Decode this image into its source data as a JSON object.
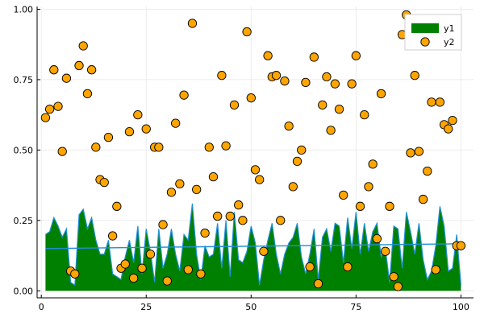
{
  "chart_data": {
    "type": "area",
    "title": "",
    "xlabel": "",
    "ylabel": "",
    "xlim": [
      -1,
      103
    ],
    "ylim": [
      -0.025,
      1.01
    ],
    "xticks": [
      0,
      25,
      50,
      75,
      100
    ],
    "xtick_labels": [
      "0",
      "25",
      "50",
      "75",
      "100"
    ],
    "yticks": [
      0.0,
      0.25,
      0.5,
      0.75,
      1.0
    ],
    "ytick_labels": [
      "0.00",
      "0.25",
      "0.50",
      "0.75",
      "1.00"
    ],
    "grid": true,
    "legend_position": "top-right",
    "colors": {
      "area_fill": "#008000",
      "area_line": "#1f8fd6",
      "marker_fill": "#ffa500",
      "marker_edge": "#000000",
      "grid": "#ececec",
      "axis": "#000000"
    },
    "series": [
      {
        "name": "y1",
        "type": "area",
        "x": [
          1,
          2,
          3,
          4,
          5,
          6,
          7,
          8,
          9,
          10,
          11,
          12,
          13,
          14,
          15,
          16,
          17,
          18,
          19,
          20,
          21,
          22,
          23,
          24,
          25,
          26,
          27,
          28,
          29,
          30,
          31,
          32,
          33,
          34,
          35,
          36,
          37,
          38,
          39,
          40,
          41,
          42,
          43,
          44,
          45,
          46,
          47,
          48,
          49,
          50,
          51,
          52,
          53,
          54,
          55,
          56,
          57,
          58,
          59,
          60,
          61,
          62,
          63,
          64,
          65,
          66,
          67,
          68,
          69,
          70,
          71,
          72,
          73,
          74,
          75,
          76,
          77,
          78,
          79,
          80,
          81,
          82,
          83,
          84,
          85,
          86,
          87,
          88,
          89,
          90,
          91,
          92,
          93,
          94,
          95,
          96,
          97,
          98,
          99,
          100
        ],
        "values": [
          0.2,
          0.21,
          0.26,
          0.23,
          0.19,
          0.22,
          0.03,
          0.02,
          0.27,
          0.29,
          0.22,
          0.26,
          0.18,
          0.13,
          0.13,
          0.18,
          0.06,
          0.05,
          0.04,
          0.12,
          0.18,
          0.1,
          0.23,
          0.06,
          0.22,
          0.14,
          0.03,
          0.22,
          0.08,
          0.13,
          0.22,
          0.13,
          0.07,
          0.2,
          0.18,
          0.31,
          0.13,
          0.04,
          0.16,
          0.12,
          0.13,
          0.24,
          0.08,
          0.25,
          0.05,
          0.28,
          0.11,
          0.1,
          0.14,
          0.23,
          0.17,
          0.02,
          0.11,
          0.18,
          0.24,
          0.13,
          0.06,
          0.13,
          0.17,
          0.19,
          0.24,
          0.12,
          0.06,
          0.13,
          0.22,
          0.04,
          0.19,
          0.22,
          0.14,
          0.24,
          0.23,
          0.1,
          0.26,
          0.15,
          0.28,
          0.13,
          0.24,
          0.14,
          0.21,
          0.24,
          0.12,
          0.15,
          0.03,
          0.23,
          0.22,
          0.08,
          0.28,
          0.21,
          0.13,
          0.24,
          0.11,
          0.04,
          0.07,
          0.16,
          0.3,
          0.23,
          0.07,
          0.08,
          0.2,
          0.02
        ]
      },
      {
        "name": "y1",
        "type": "line",
        "x": [
          1,
          100
        ],
        "values": [
          0.15,
          0.167
        ]
      },
      {
        "name": "y2",
        "type": "scatter",
        "x": [
          1,
          2,
          3,
          4,
          5,
          6,
          7,
          8,
          9,
          10,
          11,
          12,
          13,
          14,
          15,
          16,
          17,
          18,
          19,
          20,
          21,
          22,
          23,
          24,
          25,
          26,
          27,
          28,
          29,
          30,
          31,
          32,
          33,
          34,
          35,
          36,
          37,
          38,
          39,
          40,
          41,
          42,
          43,
          44,
          45,
          46,
          47,
          48,
          49,
          50,
          51,
          52,
          53,
          54,
          55,
          56,
          57,
          58,
          59,
          60,
          61,
          62,
          63,
          64,
          65,
          66,
          67,
          68,
          69,
          70,
          71,
          72,
          73,
          74,
          75,
          76,
          77,
          78,
          79,
          80,
          81,
          82,
          83,
          84,
          85,
          86,
          87,
          88,
          89,
          90,
          91,
          92,
          93,
          94,
          95,
          96,
          97,
          98,
          99,
          100
        ],
        "values": [
          0.615,
          0.645,
          0.785,
          0.655,
          0.495,
          0.755,
          0.07,
          0.06,
          0.8,
          0.87,
          0.7,
          0.785,
          0.51,
          0.395,
          0.385,
          0.545,
          0.195,
          0.3,
          0.08,
          0.095,
          0.565,
          0.045,
          0.625,
          0.08,
          0.575,
          0.13,
          0.51,
          0.51,
          0.235,
          0.035,
          0.35,
          0.595,
          0.38,
          0.695,
          0.075,
          0.95,
          0.36,
          0.06,
          0.205,
          0.51,
          0.405,
          0.265,
          0.765,
          0.515,
          0.265,
          0.66,
          0.305,
          0.25,
          0.92,
          0.685,
          0.43,
          0.395,
          0.14,
          0.835,
          0.76,
          0.765,
          0.25,
          0.745,
          0.585,
          0.37,
          0.46,
          0.5,
          0.74,
          0.085,
          0.83,
          0.025,
          0.66,
          0.76,
          0.57,
          0.735,
          0.645,
          0.34,
          0.085,
          0.735,
          0.835,
          0.3,
          0.625,
          0.37,
          0.45,
          0.185,
          0.7,
          0.14,
          0.3,
          0.05,
          0.015,
          0.91,
          0.98,
          0.49,
          0.765,
          0.495,
          0.325,
          0.425,
          0.67,
          0.075,
          0.67,
          0.59,
          0.575,
          0.605,
          0.16,
          0.16
        ]
      }
    ]
  }
}
